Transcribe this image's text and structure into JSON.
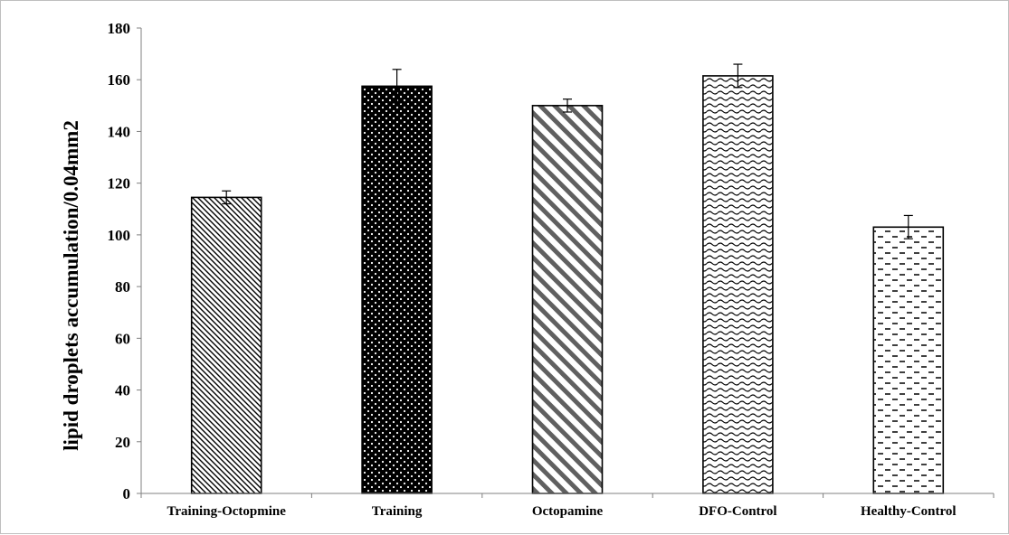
{
  "chart_data": {
    "type": "bar",
    "title": "",
    "xlabel": "",
    "ylabel": "lipid droplets accumulation/0.04mm2",
    "categories": [
      "Training-Octopmine",
      "Training",
      "Octopamine",
      "DFO-Control",
      "Healthy-Control"
    ],
    "values": [
      114.5,
      157.5,
      150,
      161.5,
      103
    ],
    "errors": [
      2.5,
      6.5,
      2.5,
      4.5,
      4.5
    ],
    "patterns": [
      "diagonal-dense",
      "dots",
      "diagonal-wide",
      "waves",
      "dashes"
    ],
    "ylim": [
      0,
      180
    ],
    "yticks": [
      0,
      20,
      40,
      60,
      80,
      100,
      120,
      140,
      160,
      180
    ],
    "grid": false,
    "legend": "none",
    "colors": {
      "bar_outline": "#000000",
      "axis": "#808080",
      "pattern_dark": "#000000",
      "pattern_gray": "#606060",
      "background": "#ffffff"
    }
  }
}
